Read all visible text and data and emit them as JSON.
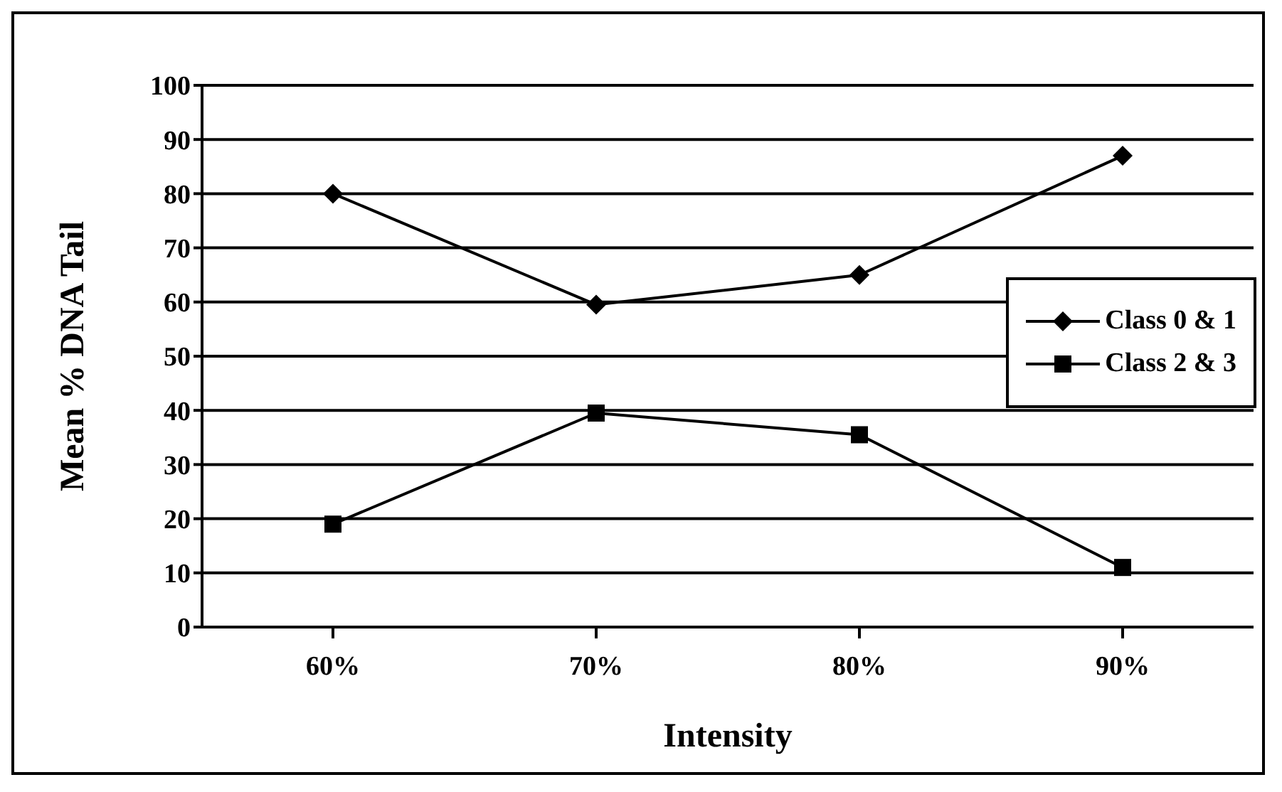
{
  "chart_data": {
    "type": "line",
    "xlabel": "Intensity",
    "ylabel": "Mean % DNA Tail",
    "categories": [
      "60%",
      "70%",
      "80%",
      "90%"
    ],
    "series": [
      {
        "name": "Class 0 & 1",
        "color": "#000000",
        "marker": "diamond",
        "values": [
          80,
          59.5,
          65,
          87
        ]
      },
      {
        "name": "Class 2 & 3",
        "color": "#000000",
        "marker": "square",
        "values": [
          19,
          39.5,
          35.5,
          11
        ]
      }
    ],
    "ylim": [
      0,
      100
    ],
    "yticks": [
      0,
      10,
      20,
      30,
      40,
      50,
      60,
      70,
      80,
      90,
      100
    ],
    "grid": "y",
    "legend": "right",
    "line_style": "solid"
  }
}
